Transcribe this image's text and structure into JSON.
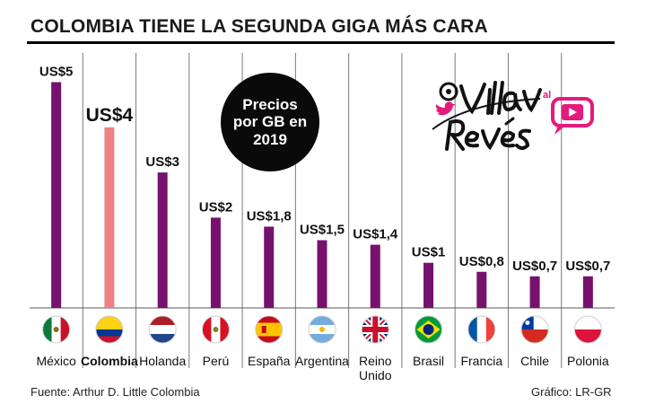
{
  "header": {
    "title": "COLOMBIA TIENE LA SEGUNDA GIGA MÁS CARA"
  },
  "badge": {
    "text": "Precios por GB en 2019"
  },
  "logo": {
    "text": "Villav al Revés"
  },
  "footer": {
    "source": "Fuente: Arthur D. Little Colombia",
    "credit": "Gráfico: LR-GR"
  },
  "colors": {
    "bar": "#76126e",
    "highlight_bar": "#ee8186",
    "gridline": "#7a7a7a",
    "baseline": "#5a5a5a",
    "logo_pink": "#e6197d"
  },
  "chart_data": {
    "type": "bar",
    "title": "COLOMBIA TIENE LA SEGUNDA GIGA MÁS CARA",
    "subtitle": "Precios por GB en 2019",
    "unit": "US$",
    "ylim": [
      0,
      5.5
    ],
    "grid": true,
    "highlight": "Colombia",
    "categories": [
      "México",
      "Colombia",
      "Holanda",
      "Perú",
      "España",
      "Argentina",
      "Reino Unido",
      "Brasil",
      "Francia",
      "Chile",
      "Polonia"
    ],
    "category_lines": [
      [
        "México"
      ],
      [
        "Colombia"
      ],
      [
        "Holanda"
      ],
      [
        "Perú"
      ],
      [
        "España"
      ],
      [
        "Argentina"
      ],
      [
        "Reino",
        "Unido"
      ],
      [
        "Brasil"
      ],
      [
        "Francia"
      ],
      [
        "Chile"
      ],
      [
        "Polonia"
      ]
    ],
    "values": [
      5,
      4,
      3,
      2,
      1.8,
      1.5,
      1.4,
      1,
      0.8,
      0.7,
      0.7
    ],
    "value_labels": [
      "US$5",
      "US$4",
      "US$3",
      "US$2",
      "US$1,8",
      "US$1,5",
      "US$1,4",
      "US$1",
      "US$0,8",
      "US$0,7",
      "US$0,7"
    ],
    "flags": [
      "mexico-flag",
      "colombia-flag",
      "netherlands-flag",
      "peru-flag",
      "spain-flag",
      "argentina-flag",
      "uk-flag",
      "brazil-flag",
      "france-flag",
      "chile-flag",
      "poland-flag"
    ]
  }
}
